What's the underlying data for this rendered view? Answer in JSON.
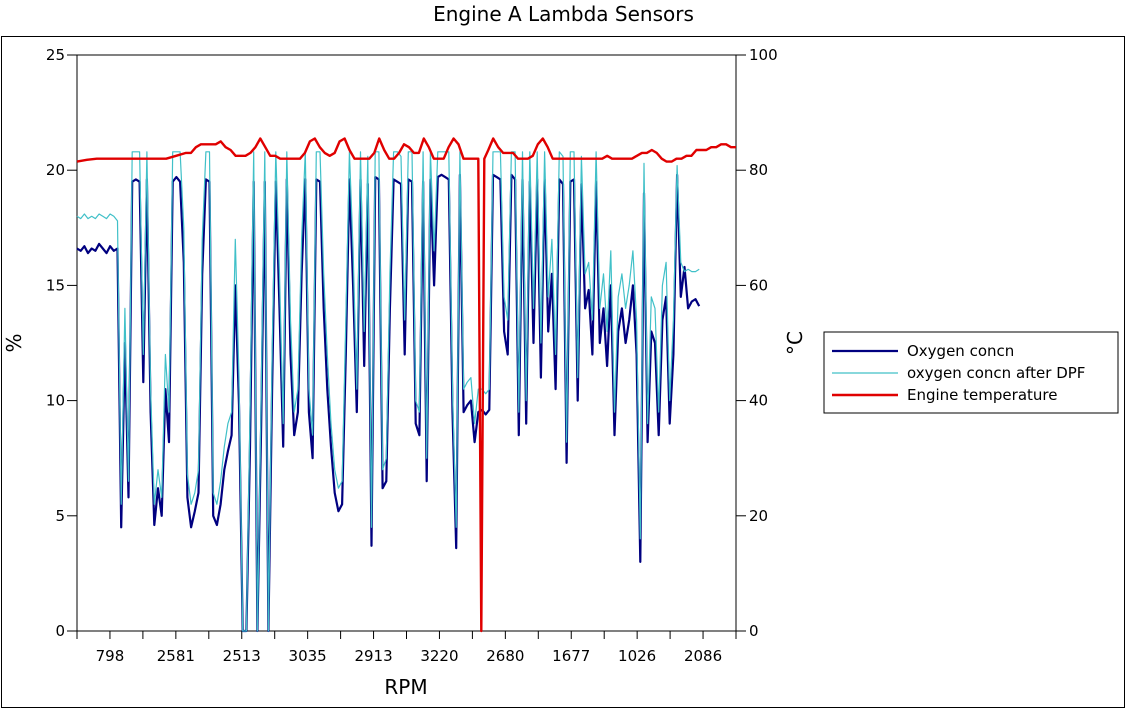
{
  "chart_data": {
    "type": "line",
    "title": "Engine A Lambda Sensors",
    "xlabel": "RPM",
    "ylabel": "%",
    "y2label": "°C",
    "ylim": [
      0,
      25
    ],
    "y2lim": [
      0,
      100
    ],
    "yticks": [
      0,
      5,
      10,
      15,
      20,
      25
    ],
    "y2ticks": [
      0,
      20,
      40,
      60,
      80,
      100
    ],
    "xtick_labels": [
      "798",
      "2581",
      "2513",
      "3035",
      "2913",
      "3220",
      "2680",
      "1677",
      "1026",
      "2086"
    ],
    "legend_position": "right",
    "grid": false,
    "series": [
      {
        "name": "Oxygen concn",
        "axis": "left",
        "color": "#000080",
        "values": [
          16.6,
          16.5,
          16.7,
          16.4,
          16.6,
          16.5,
          16.8,
          16.6,
          16.4,
          16.7,
          16.5,
          16.6,
          4.5,
          12.5,
          5.8,
          19.5,
          19.6,
          19.5,
          10.8,
          19.6,
          9.5,
          4.6,
          6.2,
          5.0,
          10.5,
          8.2,
          19.5,
          19.7,
          19.5,
          16.0,
          5.8,
          4.5,
          5.2,
          6.0,
          15.5,
          19.6,
          19.5,
          5.0,
          4.6,
          5.5,
          7.0,
          7.8,
          8.5,
          15.0,
          9.8,
          0.0,
          0.0,
          8.0,
          19.5,
          0.0,
          8.8,
          19.5,
          0.0,
          10.5,
          19.5,
          14.0,
          8.0,
          19.6,
          12.0,
          8.5,
          9.5,
          15.5,
          19.6,
          9.5,
          7.5,
          19.6,
          19.5,
          14.0,
          10.5,
          8.0,
          6.0,
          5.2,
          5.5,
          12.0,
          19.6,
          15.0,
          9.5,
          19.6,
          11.5,
          19.4,
          3.7,
          19.7,
          19.6,
          6.2,
          6.5,
          14.0,
          19.6,
          19.5,
          19.4,
          12.0,
          19.6,
          19.5,
          9.0,
          8.5,
          19.5,
          6.5,
          19.6,
          15.0,
          19.7,
          19.8,
          19.7,
          19.6,
          9.5,
          3.6,
          19.8,
          9.5,
          9.8,
          10.0,
          8.2,
          9.5,
          9.6,
          9.4,
          9.6,
          19.8,
          19.7,
          19.6,
          13.0,
          12.0,
          19.8,
          19.6,
          8.5,
          19.6,
          9.0,
          19.5,
          12.5,
          19.6,
          11.0,
          19.6,
          13.0,
          15.5,
          10.5,
          19.6,
          19.4,
          7.3,
          19.5,
          19.6,
          10.0,
          19.4,
          14.0,
          14.8,
          12.0,
          19.5,
          12.5,
          14.0,
          11.5,
          15.0,
          8.5,
          13.0,
          14.0,
          12.5,
          13.5,
          15.0,
          12.0,
          3.0,
          19.0,
          8.2,
          13.0,
          12.5,
          8.5,
          13.5,
          14.5,
          9.0,
          12.0,
          19.8,
          14.5,
          15.8,
          14.0,
          14.3,
          14.4,
          14.1
        ],
        "ts": [
          0,
          0.5,
          1,
          1.5,
          2,
          2.5,
          3,
          3.5,
          4,
          4.5,
          5,
          5.5,
          6,
          6.5,
          7,
          7.5,
          8,
          8.5,
          9,
          9.5,
          10,
          10.5,
          11,
          11.5,
          12,
          12.5,
          13,
          13.5,
          14,
          14.5,
          15,
          15.5,
          16,
          16.5,
          17,
          17.5,
          18,
          18.5,
          19,
          19.5,
          20,
          20.5,
          21,
          21.5,
          22,
          22.5,
          23,
          23.5,
          24,
          24.5,
          25,
          25.5,
          26,
          26.5,
          27,
          27.5,
          28,
          28.5,
          29,
          29.5,
          30,
          30.5,
          31,
          31.5,
          32,
          32.5,
          33,
          33.5,
          34,
          34.5,
          35,
          35.5,
          36,
          36.5,
          37,
          37.5,
          38,
          38.5,
          39,
          39.5,
          40,
          40.5,
          41,
          41.5,
          42,
          42.5,
          43,
          43.5,
          44,
          44.5,
          45,
          45.5,
          46,
          46.5,
          47,
          47.5,
          48,
          48.5,
          49,
          49.5,
          50,
          50.5,
          51,
          51.5,
          52,
          52.5,
          53,
          53.5,
          54,
          54.5,
          55,
          55.5,
          56,
          56.5,
          57,
          57.5,
          58,
          58.5,
          59,
          59.5,
          60,
          60.5,
          61,
          61.5,
          62,
          62.5,
          63,
          63.5,
          64,
          64.5,
          65,
          65.5,
          66,
          66.5,
          67,
          67.5,
          68,
          68.5,
          69,
          69.5,
          70,
          70.5,
          71,
          71.5,
          72,
          72.5,
          73,
          73.5,
          74,
          74.5,
          75,
          75.5,
          76,
          76.5,
          77,
          77.5,
          78,
          78.5,
          79,
          79.5,
          80,
          80.5,
          81,
          81.5,
          82,
          82.5,
          83,
          83.5,
          84,
          84.5,
          85,
          85.5,
          86,
          86.5,
          87,
          87.5,
          88,
          88.5,
          89,
          89.5
        ]
      },
      {
        "name": "oxygen concn after DPF",
        "axis": "left",
        "color": "#40C0C8",
        "values": [
          18.0,
          17.9,
          18.1,
          17.9,
          18.0,
          17.9,
          18.1,
          18.0,
          17.9,
          18.1,
          18.0,
          17.8,
          5.5,
          14.0,
          6.5,
          20.8,
          20.8,
          20.8,
          12.0,
          20.8,
          10.5,
          5.5,
          7.0,
          5.8,
          12.0,
          9.5,
          20.8,
          20.8,
          20.8,
          17.5,
          6.8,
          5.5,
          6.0,
          7.0,
          17.0,
          20.8,
          20.8,
          6.0,
          5.5,
          6.5,
          8.0,
          9.0,
          9.5,
          17.0,
          11.0,
          0.0,
          0.0,
          9.5,
          20.8,
          0.0,
          10.0,
          20.8,
          0.0,
          12.0,
          20.8,
          15.5,
          9.0,
          20.8,
          13.5,
          9.5,
          10.5,
          17.0,
          20.8,
          10.5,
          8.5,
          20.8,
          20.8,
          15.5,
          12.0,
          9.0,
          7.0,
          6.2,
          6.5,
          13.5,
          20.8,
          16.5,
          10.5,
          20.8,
          13.0,
          20.6,
          4.5,
          20.8,
          20.8,
          7.0,
          7.5,
          15.5,
          20.8,
          20.8,
          20.6,
          13.5,
          20.8,
          20.8,
          10.0,
          9.5,
          20.8,
          7.5,
          20.8,
          16.5,
          20.8,
          20.8,
          20.8,
          20.8,
          10.5,
          4.5,
          20.8,
          10.5,
          10.8,
          11.0,
          9.0,
          10.5,
          10.5,
          10.3,
          10.5,
          20.8,
          20.8,
          20.8,
          14.5,
          13.5,
          20.8,
          20.8,
          9.5,
          20.8,
          10.0,
          20.8,
          14.0,
          20.8,
          12.5,
          20.8,
          14.5,
          17.0,
          12.0,
          20.8,
          20.6,
          8.2,
          20.8,
          20.8,
          11.0,
          20.6,
          15.5,
          16.0,
          13.5,
          20.8,
          14.0,
          15.5,
          13.0,
          16.5,
          9.5,
          14.5,
          15.5,
          14.0,
          15.0,
          16.5,
          13.5,
          4.0,
          20.3,
          9.0,
          14.5,
          14.0,
          9.5,
          15.0,
          16.0,
          10.0,
          13.5,
          20.2,
          16.0,
          15.6,
          15.7,
          15.6,
          15.6,
          15.7
        ],
        "ts": [
          0,
          0.5,
          1,
          1.5,
          2,
          2.5,
          3,
          3.5,
          4,
          4.5,
          5,
          5.5,
          6,
          6.5,
          7,
          7.5,
          8,
          8.5,
          9,
          9.5,
          10,
          10.5,
          11,
          11.5,
          12,
          12.5,
          13,
          13.5,
          14,
          14.5,
          15,
          15.5,
          16,
          16.5,
          17,
          17.5,
          18,
          18.5,
          19,
          19.5,
          20,
          20.5,
          21,
          21.5,
          22,
          22.5,
          23,
          23.5,
          24,
          24.5,
          25,
          25.5,
          26,
          26.5,
          27,
          27.5,
          28,
          28.5,
          29,
          29.5,
          30,
          30.5,
          31,
          31.5,
          32,
          32.5,
          33,
          33.5,
          34,
          34.5,
          35,
          35.5,
          36,
          36.5,
          37,
          37.5,
          38,
          38.5,
          39,
          39.5,
          40,
          40.5,
          41,
          41.5,
          42,
          42.5,
          43,
          43.5,
          44,
          44.5,
          45,
          45.5,
          46,
          46.5,
          47,
          47.5,
          48,
          48.5,
          49,
          49.5,
          50,
          50.5,
          51,
          51.5,
          52,
          52.5,
          53,
          53.5,
          54,
          54.5,
          55,
          55.5,
          56,
          56.5,
          57,
          57.5,
          58,
          58.5,
          59,
          59.5,
          60,
          60.5,
          61,
          61.5,
          62,
          62.5,
          63,
          63.5,
          64,
          64.5,
          65,
          65.5,
          66,
          66.5,
          67,
          67.5,
          68,
          68.5,
          69,
          69.5,
          70,
          70.5,
          71,
          71.5,
          72,
          72.5,
          73,
          73.5,
          74,
          74.5,
          75,
          75.5,
          76,
          76.5,
          77,
          77.5,
          78,
          78.5,
          79,
          79.5,
          80,
          80.5,
          81,
          81.5,
          82,
          82.5,
          83,
          83.5,
          84,
          84.5,
          85,
          85.5,
          86,
          86.5,
          87,
          87.5,
          88,
          88.5,
          89,
          89.5
        ]
      },
      {
        "name": "Engine temperature",
        "axis": "right",
        "color": "#E00000",
        "values": [
          81.5,
          81.8,
          82.0,
          82.0,
          82.0,
          82.0,
          82.0,
          82.0,
          82.0,
          82.0,
          82.5,
          83.0,
          83.0,
          84.0,
          84.5,
          84.5,
          84.5,
          84.5,
          85.0,
          84.0,
          83.5,
          82.5,
          82.5,
          82.5,
          83.0,
          84.0,
          85.5,
          84.0,
          82.5,
          82.5,
          82.0,
          82.0,
          82.0,
          82.0,
          82.0,
          83.0,
          85.0,
          85.5,
          84.0,
          83.0,
          82.5,
          83.0,
          85.0,
          85.5,
          83.5,
          82.0,
          82.0,
          82.0,
          82.0,
          83.0,
          85.5,
          83.5,
          82.0,
          82.0,
          83.0,
          84.5,
          84.0,
          83.0,
          83.0,
          85.5,
          84.0,
          82.0,
          82.0,
          82.0,
          84.0,
          85.5,
          84.5,
          82.0,
          82.0,
          82.0,
          82.0,
          0.0,
          82.0,
          83.5,
          85.5,
          84.0,
          83.0,
          83.0,
          83.0,
          82.0,
          82.0,
          82.0,
          82.5,
          84.5,
          85.5,
          84.0,
          82.0,
          82.0,
          82.0,
          82.0,
          82.0,
          82.0,
          82.0,
          82.0,
          82.0,
          82.0,
          82.0,
          82.5,
          82.0,
          82.0,
          82.0,
          82.0,
          82.0,
          82.5,
          83.0,
          83.0,
          83.5,
          83.0,
          82.0,
          81.5,
          81.5,
          82.0,
          82.0,
          82.5,
          82.5,
          83.5,
          83.5,
          83.5,
          84.0,
          84.0,
          84.5,
          84.5,
          84.0,
          84.0
        ],
        "ts": [
          0,
          2,
          4,
          6,
          8,
          10,
          12,
          14,
          16,
          18,
          20,
          22,
          23,
          24,
          25,
          26,
          27,
          28,
          29,
          30,
          31,
          32,
          33,
          34,
          35,
          36,
          37,
          38,
          39,
          40,
          41,
          42,
          43,
          44,
          45,
          46,
          47,
          48,
          49,
          50,
          51,
          52,
          53,
          54,
          55,
          56,
          57,
          58,
          59,
          60,
          61,
          62,
          63,
          64,
          65,
          66,
          67,
          68,
          69,
          70,
          71,
          72,
          73,
          74,
          75,
          76,
          77,
          78,
          79,
          80,
          81,
          81.6,
          82.2,
          83,
          84,
          85,
          86,
          87,
          88,
          89,
          90,
          91,
          92,
          93,
          94,
          95,
          96,
          97,
          98,
          99,
          100,
          101,
          102,
          103,
          104,
          105,
          106,
          107,
          108,
          109,
          110,
          111,
          112,
          113,
          114,
          115,
          116,
          117,
          118,
          119,
          120,
          121,
          122,
          123,
          124,
          125,
          126,
          127,
          128,
          129,
          130,
          131,
          132,
          133
        ]
      }
    ]
  }
}
